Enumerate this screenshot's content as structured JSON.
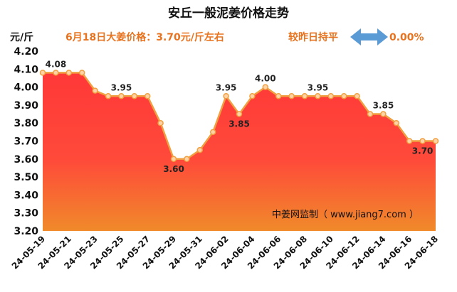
{
  "header": {
    "title": "安丘一般泥姜价格走势",
    "unit": "元/斤",
    "price_text": "6月18日大姜价格：3.70元/斤左右",
    "compare_text": "较昨日持平",
    "change_pct": "0.00%"
  },
  "colors": {
    "accent": "#e8731e",
    "arrow": "#5b9bd5",
    "fill_top": "#ff3838",
    "fill_bottom": "#f08a2a",
    "line": "#f0a040"
  },
  "watermark": "中姜网监制（ www.jiang7.com ）",
  "chart_data": {
    "type": "area",
    "title": "安丘一般泥姜价格走势",
    "ylabel": "元/斤",
    "ylim": [
      3.2,
      4.2
    ],
    "yticks": [
      "4.20",
      "4.10",
      "4.00",
      "3.90",
      "3.80",
      "3.70",
      "3.60",
      "3.50",
      "3.40",
      "3.30",
      "3.20"
    ],
    "x": [
      "24-05-19",
      "24-05-20",
      "24-05-21",
      "24-05-22",
      "24-05-23",
      "24-05-24",
      "24-05-25",
      "24-05-26",
      "24-05-27",
      "24-05-28",
      "24-05-29",
      "24-05-30",
      "24-05-31",
      "24-06-01",
      "24-06-02",
      "24-06-03",
      "24-06-04",
      "24-06-05",
      "24-06-06",
      "24-06-07",
      "24-06-08",
      "24-06-09",
      "24-06-10",
      "24-06-11",
      "24-06-12",
      "24-06-13",
      "24-06-14",
      "24-06-15",
      "24-06-16",
      "24-06-17",
      "24-06-18"
    ],
    "xtick_labels": [
      "24-05-19",
      "24-05-21",
      "24-05-23",
      "24-05-25",
      "24-05-27",
      "24-05-29",
      "24-05-31",
      "24-06-02",
      "24-06-04",
      "24-06-06",
      "24-06-08",
      "24-06-10",
      "24-06-12",
      "24-06-14",
      "24-06-16",
      "24-06-18"
    ],
    "values": [
      4.08,
      4.08,
      4.08,
      4.08,
      3.98,
      3.95,
      3.95,
      3.95,
      3.95,
      3.8,
      3.6,
      3.6,
      3.65,
      3.75,
      3.95,
      3.85,
      3.95,
      4.0,
      3.95,
      3.95,
      3.95,
      3.95,
      3.95,
      3.95,
      3.95,
      3.85,
      3.85,
      3.8,
      3.7,
      3.7,
      3.7
    ],
    "data_labels": [
      {
        "index": 1,
        "text": "4.08"
      },
      {
        "index": 6,
        "text": "3.95"
      },
      {
        "index": 10,
        "text": "3.60"
      },
      {
        "index": 14,
        "text": "3.95"
      },
      {
        "index": 15,
        "text": "3.85"
      },
      {
        "index": 17,
        "text": "4.00"
      },
      {
        "index": 21,
        "text": "3.95"
      },
      {
        "index": 26,
        "text": "3.85"
      },
      {
        "index": 29,
        "text": "3.70"
      }
    ],
    "grid": true
  }
}
